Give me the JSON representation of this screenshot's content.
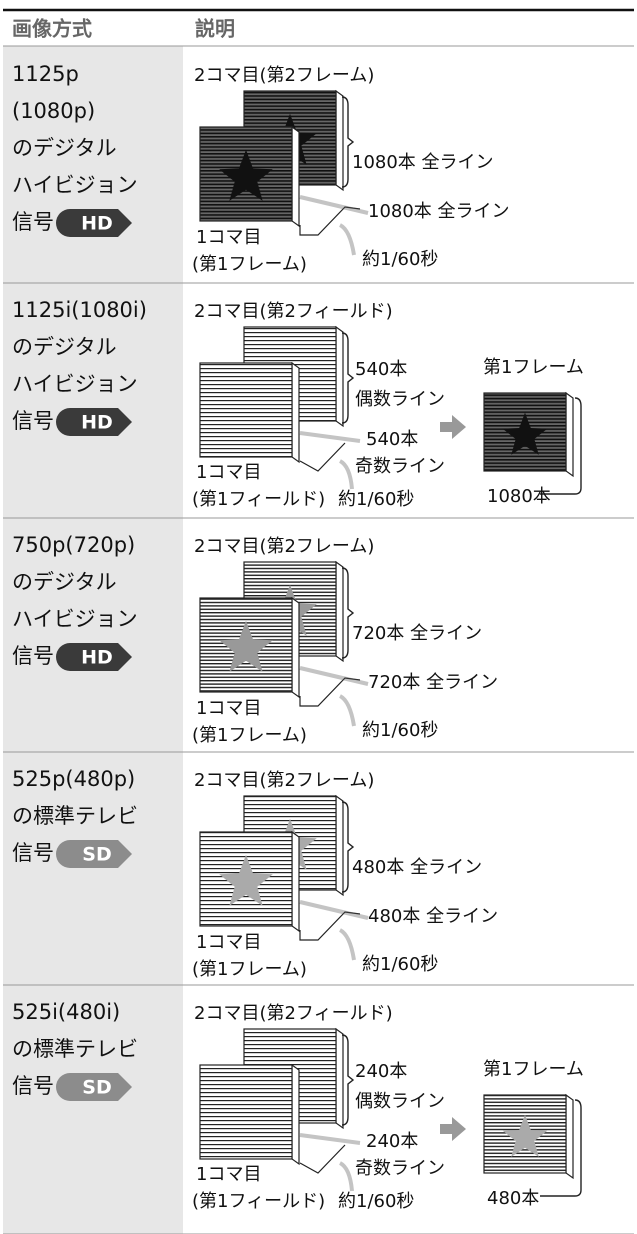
{
  "header": {
    "col1": "画像方式",
    "col2": "説明"
  },
  "rows": [
    {
      "format": [
        "1125p",
        "(1080p)",
        "のデジタル",
        "ハイビジョン",
        "信号"
      ],
      "badge": "HD",
      "caption": "2コマ目(第2フレーム)",
      "labels": [
        "1080本 全ライン",
        "1080本 全ライン",
        "1コマ目",
        "(第1フレーム)",
        "約1/60秒"
      ]
    },
    {
      "format": [
        "1125i(1080i)",
        "のデジタル",
        "ハイビジョン",
        "信号"
      ],
      "badge": "HD",
      "caption": "2コマ目(第2フィールド)",
      "labels": [
        "540本",
        "偶数ライン",
        "540本",
        "奇数ライン",
        "1コマ目",
        "(第1フィールド)",
        "約1/60秒",
        "第1フレーム",
        "1080本"
      ]
    },
    {
      "format": [
        "750p(720p)",
        "のデジタル",
        "ハイビジョン",
        "信号"
      ],
      "badge": "HD",
      "caption": "2コマ目(第2フレーム)",
      "labels": [
        "720本 全ライン",
        "720本 全ライン",
        "1コマ目",
        "(第1フレーム)",
        "約1/60秒"
      ]
    },
    {
      "format": [
        "525p(480p)",
        "の標準テレビ",
        "信号"
      ],
      "badge": "SD",
      "caption": "2コマ目(第2フレーム)",
      "labels": [
        "480本 全ライン",
        "480本 全ライン",
        "1コマ目",
        "(第1フレーム)",
        "約1/60秒"
      ]
    },
    {
      "format": [
        "525i(480i)",
        "の標準テレビ",
        "信号"
      ],
      "badge": "SD",
      "caption": "2コマ目(第2フィールド)",
      "labels": [
        "240本",
        "偶数ライン",
        "240本",
        "奇数ライン",
        "1コマ目",
        "(第1フィールド)",
        "約1/60秒",
        "第1フレーム",
        "480本"
      ]
    }
  ]
}
